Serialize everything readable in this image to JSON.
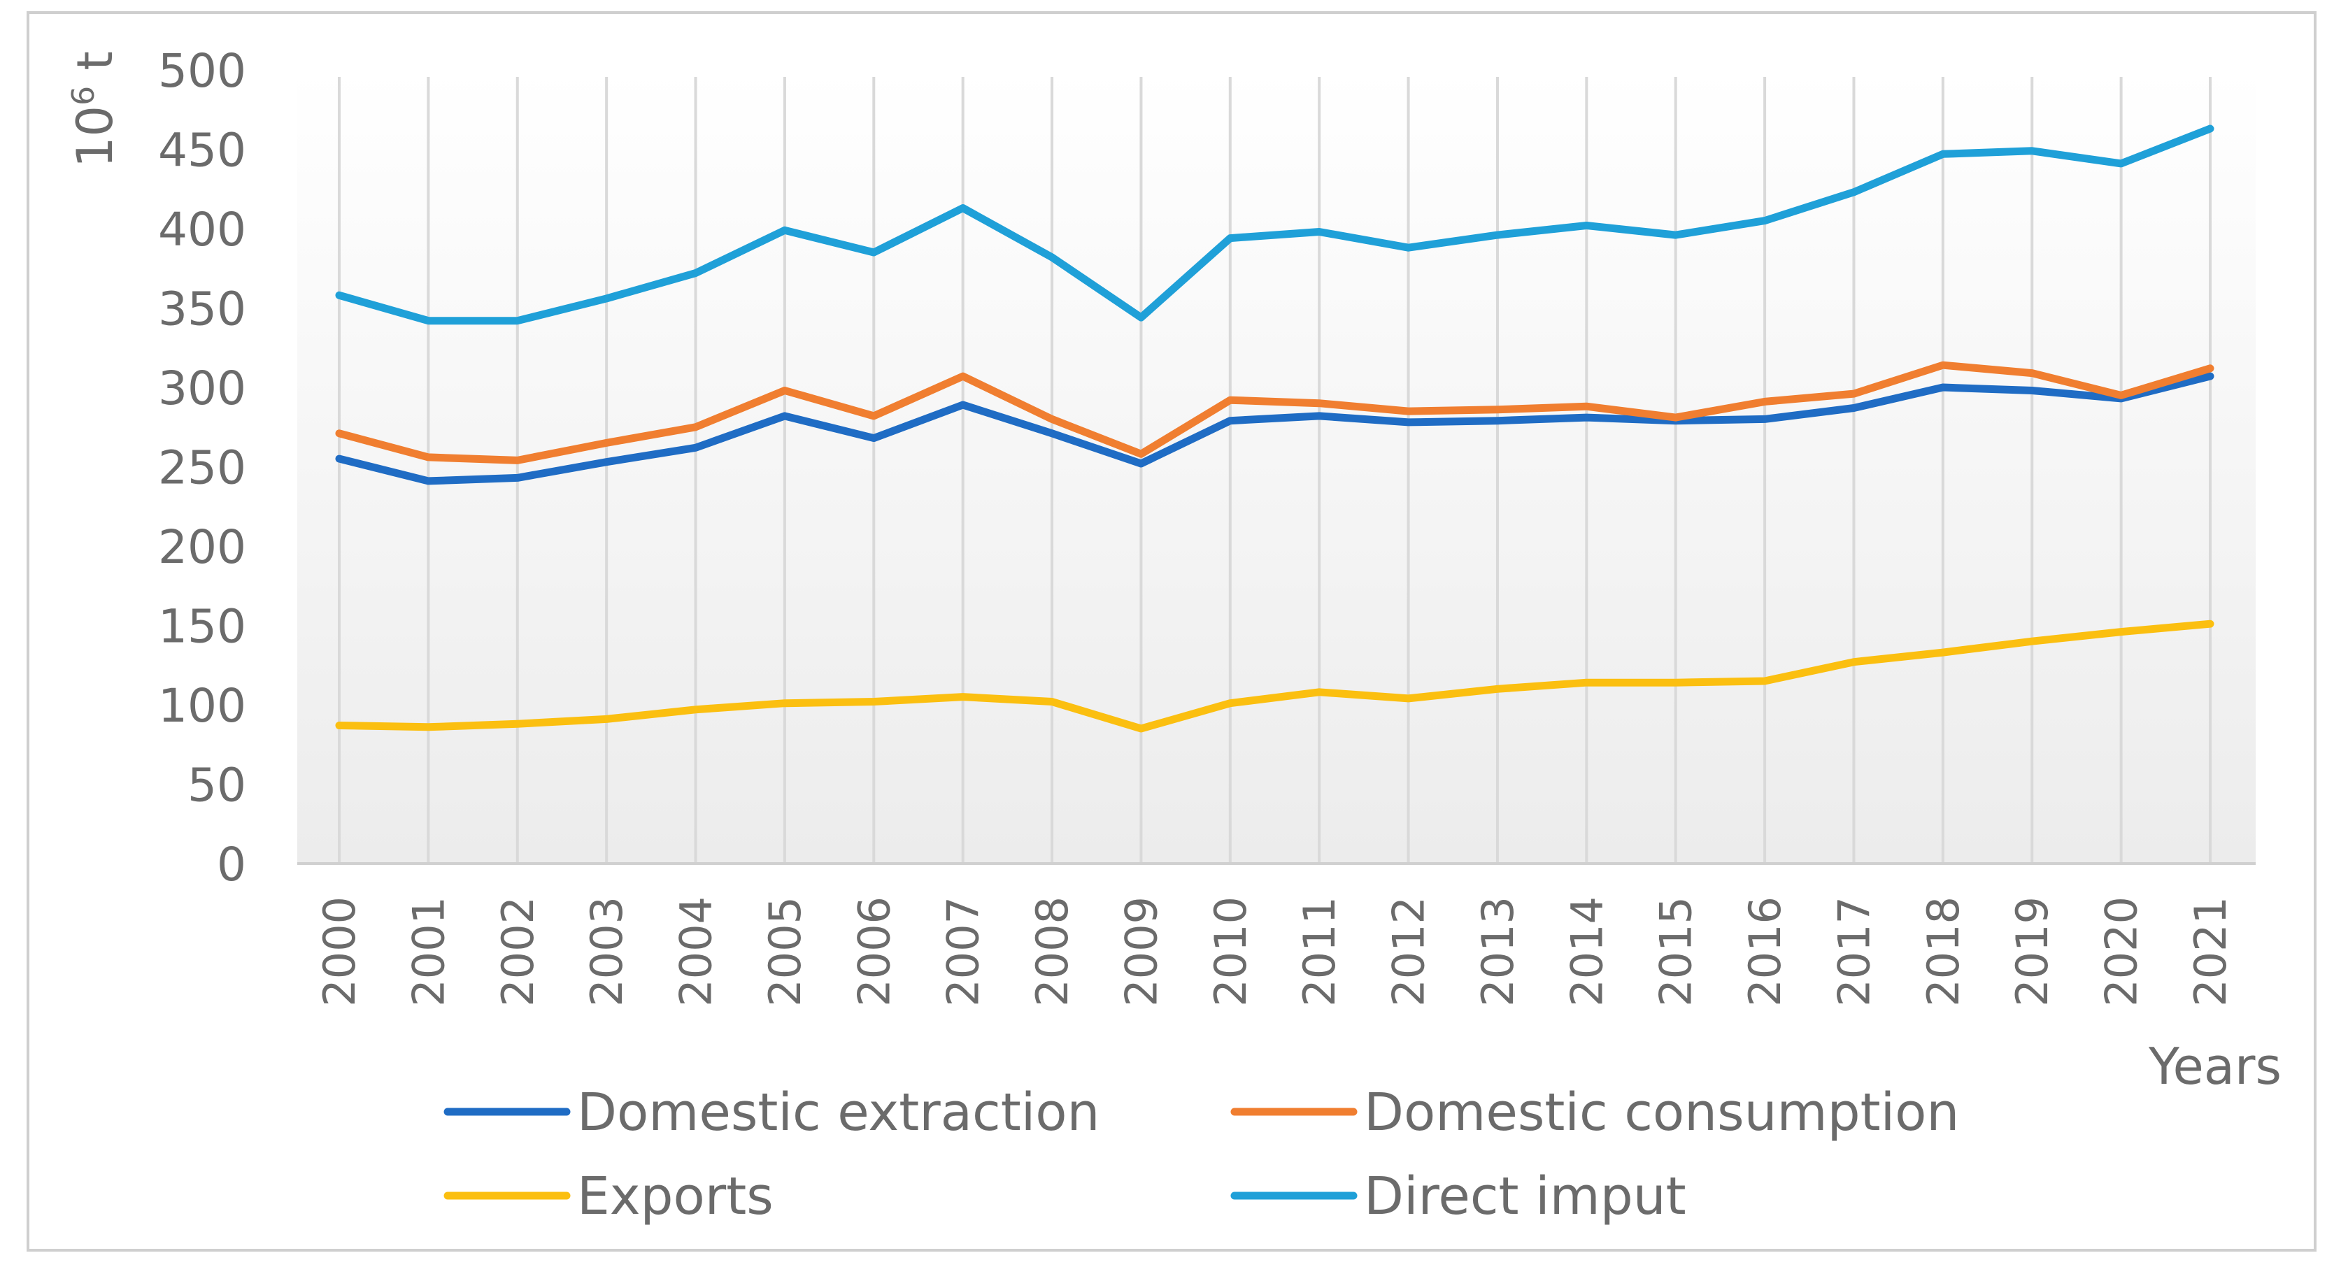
{
  "chart_data": {
    "type": "line",
    "title": "",
    "xlabel": "Years",
    "ylabel": "10",
    "ylabel_sup": "6",
    "ylabel_unit": " t",
    "ylim": [
      0,
      500
    ],
    "yticks": [
      0,
      50,
      100,
      150,
      200,
      250,
      300,
      350,
      400,
      450,
      500
    ],
    "grid": "vertical",
    "legend_position": "bottom",
    "categories": [
      "2000",
      "2001",
      "2002",
      "2003",
      "2004",
      "2005",
      "2006",
      "2007",
      "2008",
      "2009",
      "2010",
      "2011",
      "2012",
      "2013",
      "2014",
      "2015",
      "2016",
      "2017",
      "2018",
      "2019",
      "2020",
      "2021"
    ],
    "series": [
      {
        "name": "Domestic extraction",
        "color": "#1f6cc4",
        "values": [
          255,
          241,
          243,
          253,
          262,
          282,
          268,
          289,
          271,
          252,
          279,
          282,
          278,
          279,
          281,
          279,
          280,
          287,
          300,
          298,
          293,
          307
        ]
      },
      {
        "name": "Domestic consumption",
        "color": "#f07e30",
        "values": [
          271,
          256,
          254,
          265,
          275,
          298,
          282,
          307,
          280,
          258,
          292,
          290,
          285,
          286,
          288,
          281,
          291,
          296,
          314,
          309,
          295,
          312
        ]
      },
      {
        "name": "Exports",
        "color": "#fbbf10",
        "values": [
          87,
          86,
          88,
          91,
          97,
          101,
          102,
          105,
          102,
          85,
          101,
          108,
          104,
          110,
          114,
          114,
          115,
          127,
          133,
          140,
          146,
          151
        ]
      },
      {
        "name": "Direct imput",
        "color": "#1fa0d8",
        "values": [
          358,
          342,
          342,
          356,
          372,
          399,
          385,
          413,
          382,
          344,
          394,
          398,
          388,
          396,
          402,
          396,
          405,
          423,
          447,
          449,
          441,
          463
        ]
      }
    ]
  }
}
